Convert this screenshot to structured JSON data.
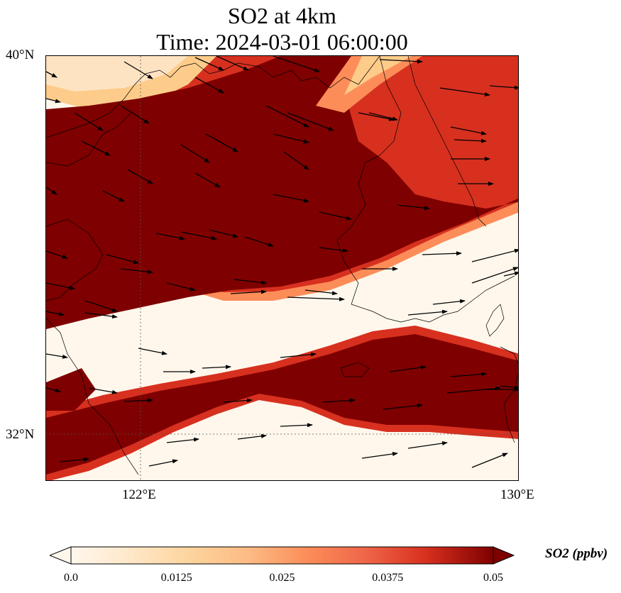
{
  "title": {
    "line1": "SO2 at 4km",
    "line2": "Time: 2024-03-01 06:00:00"
  },
  "map": {
    "projection": "PlateCarree",
    "lon_range": [
      120,
      130
    ],
    "lat_range": [
      31,
      40
    ],
    "field": "SO2",
    "gridlines": "dotted",
    "coastlines": true,
    "wind_vectors": true,
    "x_ticks": [
      {
        "value": 122,
        "label": "122°E"
      },
      {
        "value": 130,
        "label": "130°E"
      }
    ],
    "y_ticks": [
      {
        "value": 40,
        "label": "40°N"
      },
      {
        "value": 32,
        "label": "32°N"
      }
    ],
    "colors": {
      "high": "#7f0000",
      "mid_high": "#d7301f",
      "mid": "#fc8d59",
      "mid_low": "#fdcc8a",
      "low": "#fff7ec"
    }
  },
  "colorbar": {
    "label": "SO2 (ppbv)",
    "colormap": "OrRd",
    "extend": "both",
    "range": [
      0.0,
      0.05
    ],
    "ticks": [
      {
        "value": 0.0,
        "label": "0.0"
      },
      {
        "value": 0.0125,
        "label": "0.0125"
      },
      {
        "value": 0.025,
        "label": "0.025"
      },
      {
        "value": 0.0375,
        "label": "0.0375"
      },
      {
        "value": 0.05,
        "label": "0.05"
      }
    ]
  }
}
